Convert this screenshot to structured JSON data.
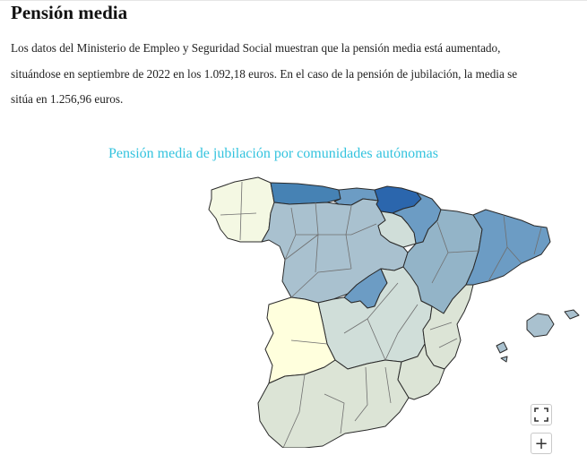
{
  "article": {
    "heading": "Pensión media",
    "paragraph_lines": [
      "Los datos del Ministerio de Empleo y Seguridad Social muestran que la pensión media está aumentado,",
      "situándose en septiembre de 2022 en los 1.092,18 euros. En el caso de la pensión de jubilación, la media se",
      "sitúa en 1.256,96 euros."
    ]
  },
  "map": {
    "title": "Pensión media de jubilación por comunidades autónomas",
    "scale_colors": {
      "darkest": "#2b66ad",
      "dark": "#4682b4",
      "mid_dark": "#6c9cc4",
      "mid": "#93b4c8",
      "mid_light": "#a9c1cf",
      "light": "#d0ded9",
      "lighter": "#dce4d6",
      "pale": "#f4f8e3",
      "palest": "#ffffdd"
    },
    "region_levels": {
      "galicia": "pale",
      "asturias": "dark",
      "cantabria": "mid_dark",
      "pais_vasco": "darkest",
      "navarra": "mid_dark",
      "castilla_y_leon": "mid_light",
      "la_rioja": "light",
      "aragon": "mid",
      "cataluna": "mid_dark",
      "madrid": "mid_dark",
      "castilla_la_mancha": "light",
      "extremadura": "palest",
      "comunidad_valenciana": "lighter",
      "andalucia": "lighter",
      "murcia": "lighter",
      "baleares": "mid_light"
    }
  },
  "controls": {
    "fullscreen_icon": "fullscreen-icon",
    "zoom_in_label": "+"
  }
}
